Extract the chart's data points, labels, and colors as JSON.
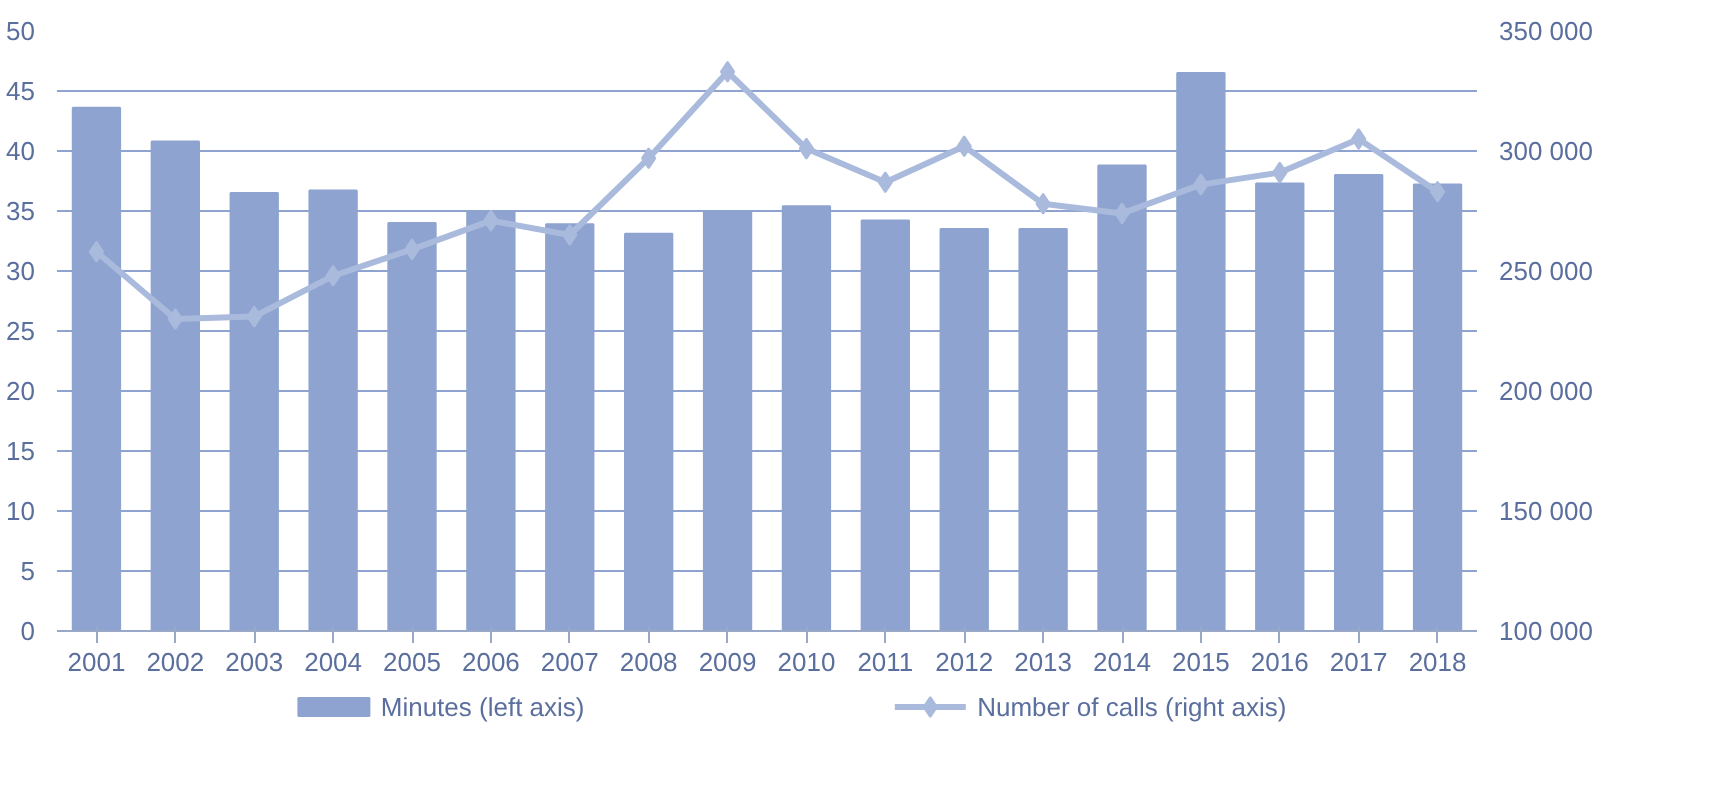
{
  "chart_data": {
    "type": "bar",
    "categories": [
      "2001",
      "2002",
      "2003",
      "2004",
      "2005",
      "2006",
      "2007",
      "2008",
      "2009",
      "2010",
      "2011",
      "2012",
      "2013",
      "2014",
      "2015",
      "2016",
      "2017",
      "2018"
    ],
    "series": [
      {
        "name": "Minutes (left axis)",
        "color": "#8ea3cf",
        "values": [
          43.6,
          40.8,
          36.5,
          36.7,
          34.0,
          35.0,
          33.9,
          33.1,
          35.0,
          35.4,
          34.2,
          33.5,
          33.5,
          38.8,
          46.5,
          37.3,
          38.0,
          37.2
        ]
      },
      {
        "name": "Number of calls (right axis)",
        "type": "line",
        "axis": "y2",
        "color": "#a9badd",
        "marker": "diamond",
        "values": [
          258000,
          230000,
          231000,
          248000,
          259000,
          271000,
          265000,
          297000,
          333000,
          301000,
          287000,
          302000,
          278000,
          274000,
          286000,
          291000,
          305000,
          283000
        ]
      }
    ],
    "ylim": [
      0,
      50
    ],
    "yticks": [
      0,
      5,
      10,
      15,
      20,
      25,
      30,
      35,
      40,
      45,
      50
    ],
    "y2lim": [
      100000,
      350000
    ],
    "y2ticks": [
      {
        "value": 100000,
        "label": "100 000"
      },
      {
        "value": 150000,
        "label": "150 000"
      },
      {
        "value": 200000,
        "label": "200 000"
      },
      {
        "value": 250000,
        "label": "250 000"
      },
      {
        "value": 300000,
        "label": "300 000"
      },
      {
        "value": 350000,
        "label": "350 000"
      }
    ],
    "grid": "y",
    "legend": "bottom"
  }
}
